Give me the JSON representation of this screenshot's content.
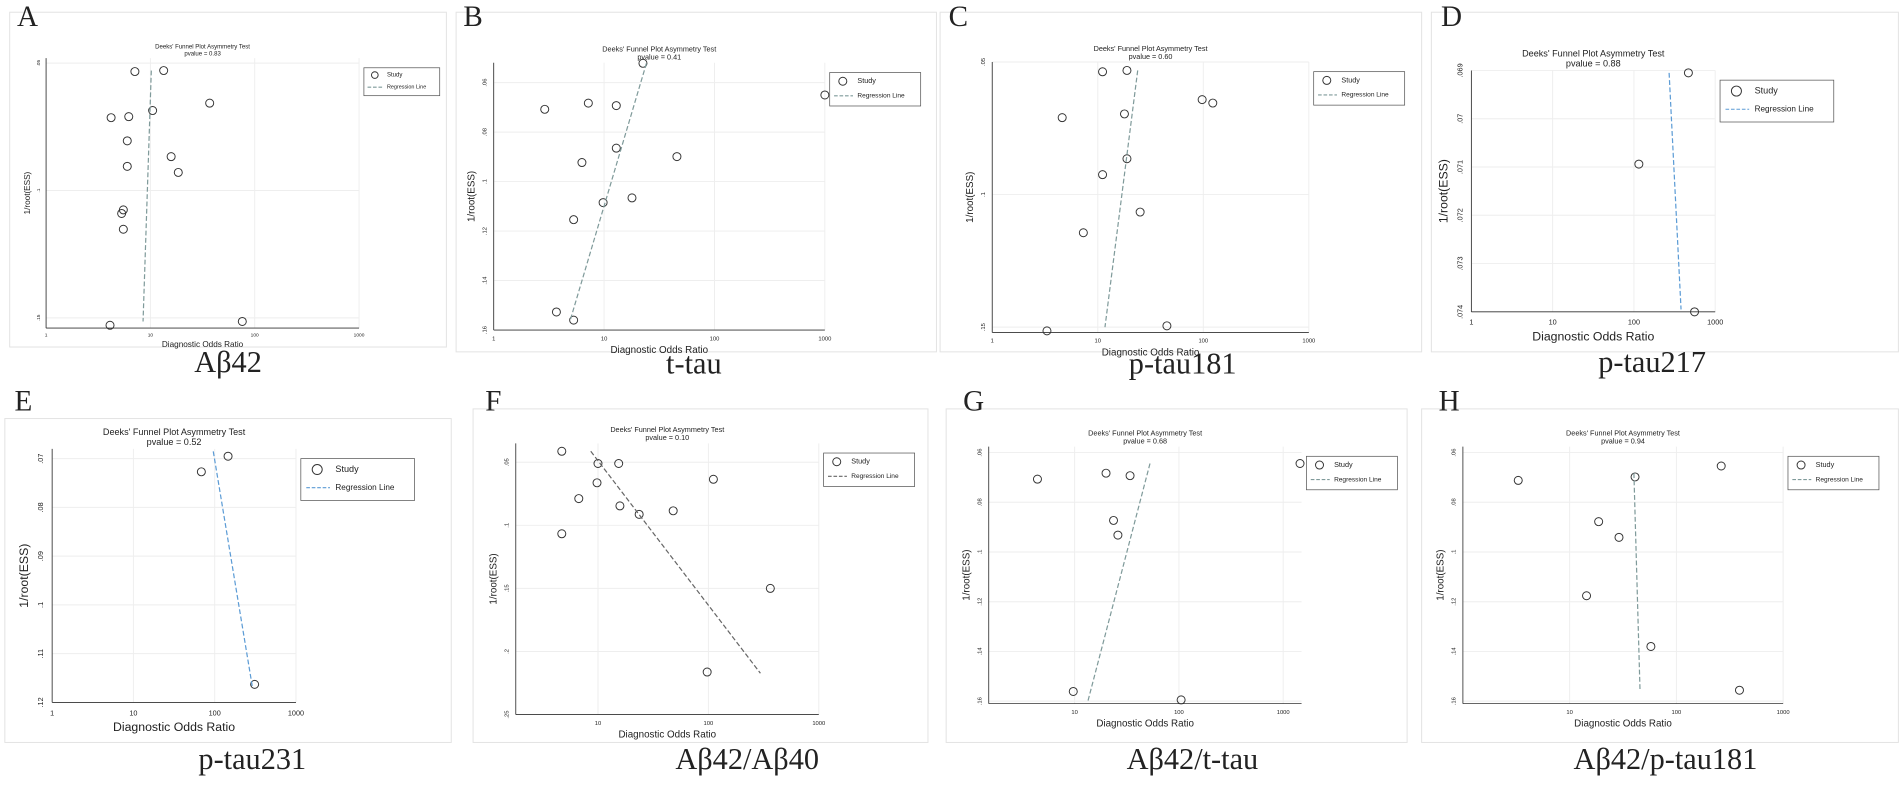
{
  "chart_data": [
    {
      "type": "scatter",
      "panel": "A",
      "caption": "Aβ42",
      "title": "Deeks' Funnel Plot Asymmetry Test",
      "subtitle": "pvalue = 0.83",
      "xlabel": "Diagnostic Odds Ratio",
      "ylabel": "1/root(ESS)",
      "xscale": "log",
      "grid": true,
      "xlim": [
        1,
        1000
      ],
      "xticks": [
        1,
        10,
        100,
        1000
      ],
      "ylim": [
        0.048,
        0.154
      ],
      "yticks": [
        {
          "value": 0.05,
          "label": ".05"
        },
        {
          "value": 0.1,
          "label": ".1"
        },
        {
          "value": 0.15,
          "label": ".15"
        }
      ],
      "series": [
        {
          "name": "Study",
          "color": "#333333",
          "x": [
            7.1,
            13.4,
            4.2,
            6.2,
            10.5,
            37,
            6.0,
            15.8,
            6.0,
            18.5,
            5.5,
            5.3,
            5.5,
            4.1,
            76
          ],
          "values": [
            0.0533,
            0.0529,
            0.0714,
            0.071,
            0.0686,
            0.0657,
            0.0805,
            0.0867,
            0.0905,
            0.0929,
            0.1076,
            0.109,
            0.1152,
            0.1529,
            0.1514
          ]
        },
        {
          "name": "Regression Line",
          "color": "#7f9a9a",
          "x": [
            10.2,
            8.5
          ],
          "values": [
            0.0529,
            0.1514
          ]
        }
      ]
    },
    {
      "type": "scatter",
      "panel": "B",
      "caption": "t-tau",
      "title": "Deeks' Funnel Plot Asymmetry Test",
      "subtitle": "pvalue = 0.41",
      "xlabel": "Diagnostic Odds Ratio",
      "ylabel": "1/root(ESS)",
      "xscale": "log",
      "grid": true,
      "xlim": [
        1,
        1000
      ],
      "xticks": [
        1,
        10,
        100,
        1000
      ],
      "ylim": [
        0.052,
        0.16
      ],
      "yticks": [
        {
          "value": 0.06,
          "label": ".06"
        },
        {
          "value": 0.08,
          "label": ".08"
        },
        {
          "value": 0.1,
          "label": ".1"
        },
        {
          "value": 0.12,
          "label": ".12"
        },
        {
          "value": 0.14,
          "label": ".14"
        },
        {
          "value": 0.16,
          "label": ".16"
        }
      ],
      "series": [
        {
          "name": "Study",
          "color": "#333333",
          "x": [
            22.5,
            2.9,
            7.2,
            12.9,
            12.9,
            6.3,
            45.7,
            9.8,
            17.9,
            5.3,
            3.7,
            5.3,
            1000
          ],
          "values": [
            0.0522,
            0.0708,
            0.0683,
            0.0693,
            0.0865,
            0.0923,
            0.0899,
            0.1085,
            0.1066,
            0.1154,
            0.1527,
            0.156,
            0.065
          ]
        },
        {
          "name": "Regression Line",
          "color": "#7f9a9a",
          "x": [
            24.2,
            4.9
          ],
          "values": [
            0.0522,
            0.1565
          ]
        }
      ]
    },
    {
      "type": "scatter",
      "panel": "C",
      "caption": "p-tau181",
      "title": "Deeks' Funnel Plot Asymmetry Test",
      "subtitle": "pvalue = 0.60",
      "xlabel": "Diagnostic Odds Ratio",
      "ylabel": "1/root(ESS)",
      "xscale": "log",
      "grid": true,
      "xlim": [
        1,
        1000
      ],
      "xticks": [
        1,
        10,
        100,
        1000
      ],
      "ylim": [
        0.05,
        0.152
      ],
      "yticks": [
        {
          "value": 0.05,
          "label": ".05"
        },
        {
          "value": 0.1,
          "label": ".1"
        },
        {
          "value": 0.15,
          "label": ".15"
        }
      ],
      "series": [
        {
          "name": "Study",
          "color": "#333333",
          "x": [
            11.1,
            18.9,
            4.6,
            17.9,
            97.5,
            123,
            18.9,
            11.1,
            7.3,
            25.2,
            3.3,
            45.2
          ],
          "values": [
            0.0537,
            0.0532,
            0.071,
            0.0696,
            0.0642,
            0.0655,
            0.0865,
            0.0925,
            0.1144,
            0.1066,
            0.1514,
            0.1495
          ]
        },
        {
          "name": "Regression Line",
          "color": "#7f9a9a",
          "x": [
            23.9,
            11.7
          ],
          "values": [
            0.0532,
            0.15
          ]
        }
      ]
    },
    {
      "type": "scatter",
      "panel": "D",
      "caption": "p-tau217",
      "title": "Deeks' Funnel Plot Asymmetry Test",
      "subtitle": "pvalue = 0.88",
      "xlabel": "Diagnostic Odds Ratio",
      "ylabel": "1/root(ESS)",
      "xscale": "log",
      "grid": true,
      "xlim": [
        1,
        1000
      ],
      "xticks": [
        1,
        10,
        100,
        1000
      ],
      "ylim": [
        0.069,
        0.074
      ],
      "yticks": [
        {
          "value": 0.069,
          "label": ".069"
        },
        {
          "value": 0.07,
          "label": ".07"
        },
        {
          "value": 0.071,
          "label": ".071"
        },
        {
          "value": 0.072,
          "label": ".072"
        },
        {
          "value": 0.073,
          "label": ".073"
        },
        {
          "value": 0.074,
          "label": ".074"
        }
      ],
      "series": [
        {
          "name": "Study",
          "color": "#333333",
          "x": [
            468,
            115,
            557
          ],
          "values": [
            0.06905,
            0.07094,
            0.074
          ]
        },
        {
          "name": "Regression Line",
          "color": "#5b9bd5",
          "x": [
            271,
            380
          ],
          "values": [
            0.06905,
            0.07395
          ]
        }
      ]
    },
    {
      "type": "scatter",
      "panel": "E",
      "caption": "p-tau231",
      "title": "Deeks' Funnel Plot Asymmetry Test",
      "subtitle": "pvalue = 0.52",
      "xlabel": "Diagnostic Odds Ratio",
      "ylabel": "1/root(ESS)",
      "xscale": "log",
      "grid": true,
      "xlim": [
        1,
        1000
      ],
      "xticks": [
        1,
        10,
        100,
        1000
      ],
      "ylim": [
        0.068,
        0.12
      ],
      "yticks": [
        {
          "value": 0.07,
          "label": ".07"
        },
        {
          "value": 0.08,
          "label": ".08"
        },
        {
          "value": 0.09,
          "label": ".09"
        },
        {
          "value": 0.1,
          "label": ".1"
        },
        {
          "value": 0.11,
          "label": ".11"
        },
        {
          "value": 0.12,
          "label": ".12"
        }
      ],
      "series": [
        {
          "name": "Study",
          "color": "#333333",
          "x": [
            68.5,
            146,
            310
          ],
          "values": [
            0.0727,
            0.0695,
            0.1163
          ]
        },
        {
          "name": "Regression Line",
          "color": "#5b9bd5",
          "x": [
            96,
            292
          ],
          "values": [
            0.0685,
            0.117
          ]
        }
      ]
    },
    {
      "type": "scatter",
      "panel": "F",
      "caption": "Aβ42/Aβ40",
      "title": "Deeks' Funnel Plot Asymmetry Test",
      "subtitle": "pvalue = 0.10",
      "xlabel": "Diagnostic Odds Ratio",
      "ylabel": "1/root(ESS)",
      "xscale": "log",
      "grid": true,
      "xlim": [
        1.8,
        1000
      ],
      "xticks": [
        10,
        100,
        1000
      ],
      "ylim": [
        0.035,
        0.25
      ],
      "yticks": [
        {
          "value": 0.05,
          "label": ".05"
        },
        {
          "value": 0.1,
          "label": ".1"
        },
        {
          "value": 0.15,
          "label": ".15"
        },
        {
          "value": 0.2,
          "label": ".2"
        },
        {
          "value": 0.25,
          "label": ".25"
        }
      ],
      "series": [
        {
          "name": "Study",
          "color": "#333333",
          "x": [
            4.7,
            10,
            15.4,
            9.8,
            6.7,
            15.8,
            23.6,
            48,
            111,
            4.7,
            364,
            97.5
          ],
          "values": [
            0.0413,
            0.051,
            0.051,
            0.0663,
            0.0788,
            0.0846,
            0.0913,
            0.0885,
            0.0635,
            0.1067,
            0.15,
            0.2163
          ]
        },
        {
          "name": "Regression Line",
          "color": "#666666",
          "x": [
            8.6,
            296
          ],
          "values": [
            0.0413,
            0.2173
          ]
        }
      ]
    },
    {
      "type": "scatter",
      "panel": "G",
      "caption": "Aβ42/t-tau",
      "title": "Deeks' Funnel Plot Asymmetry Test",
      "subtitle": "pvalue = 0.68",
      "xlabel": "Diagnostic Odds Ratio",
      "ylabel": "1/root(ESS)",
      "xscale": "log",
      "grid": true,
      "xlim": [
        1.5,
        1500
      ],
      "xticks": [
        10,
        100,
        1000
      ],
      "ylim": [
        0.0576,
        0.161
      ],
      "yticks": [
        {
          "value": 0.06,
          "label": ".06"
        },
        {
          "value": 0.08,
          "label": ".08"
        },
        {
          "value": 0.1,
          "label": ".1"
        },
        {
          "value": 0.12,
          "label": ".12"
        },
        {
          "value": 0.14,
          "label": ".14"
        },
        {
          "value": 0.16,
          "label": ".16"
        }
      ],
      "series": [
        {
          "name": "Study",
          "color": "#333333",
          "x": [
            4.4,
            20,
            34,
            23.6,
            26,
            9.7,
            105,
            1450
          ],
          "values": [
            0.0707,
            0.0683,
            0.0693,
            0.0873,
            0.0932,
            0.1561,
            0.1595,
            0.0644
          ]
        },
        {
          "name": "Regression Line",
          "color": "#7f9a9a",
          "x": [
            52.8,
            13.4
          ],
          "values": [
            0.0644,
            0.16
          ]
        }
      ]
    },
    {
      "type": "scatter",
      "panel": "H",
      "caption": "Aβ42/p-tau181",
      "title": "Deeks' Funnel Plot Asymmetry Test",
      "subtitle": "pvalue = 0.94",
      "xlabel": "Diagnostic Odds Ratio",
      "ylabel": "1/root(ESS)",
      "xscale": "log",
      "grid": true,
      "xlim": [
        1,
        1000
      ],
      "xticks": [
        10,
        100,
        1000
      ],
      "ylim": [
        0.0576,
        0.161
      ],
      "yticks": [
        {
          "value": 0.06,
          "label": ".06"
        },
        {
          "value": 0.08,
          "label": ".08"
        },
        {
          "value": 0.1,
          "label": ".1"
        },
        {
          "value": 0.12,
          "label": ".12"
        },
        {
          "value": 0.14,
          "label": ".14"
        },
        {
          "value": 0.16,
          "label": ".16"
        }
      ],
      "series": [
        {
          "name": "Study",
          "color": "#333333",
          "x": [
            3.3,
            41,
            263,
            18.7,
            29,
            14.4,
            57.7,
            390
          ],
          "values": [
            0.0712,
            0.0698,
            0.0654,
            0.0878,
            0.0941,
            0.1176,
            0.138,
            0.1556
          ]
        },
        {
          "name": "Regression Line",
          "color": "#7f9a9a",
          "x": [
            40,
            45.6
          ],
          "values": [
            0.0683,
            0.1551
          ]
        }
      ]
    }
  ]
}
